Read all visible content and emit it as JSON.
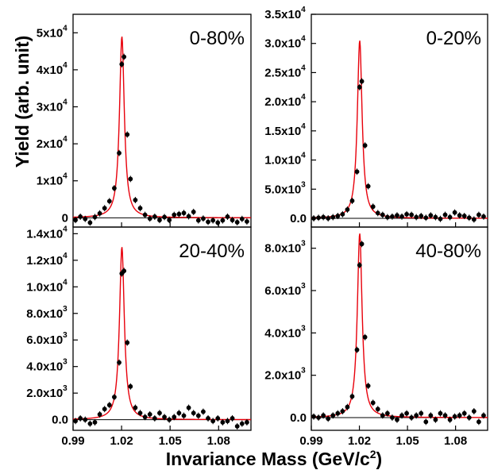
{
  "chart_data": {
    "type": "scatter",
    "xlabel": "Invariance Mass (GeV/c²)",
    "xlabel_parts": {
      "main": "Invariance Mass (GeV/c",
      "sup": "2",
      "end": ")"
    },
    "ylabel": "Yield (arb. unit)",
    "x_ticks": [
      "0.99",
      "1.02",
      "1.05",
      "1.08"
    ],
    "x_tick_values": [
      0.99,
      1.02,
      1.05,
      1.08
    ],
    "xlim": [
      0.99,
      1.1
    ],
    "fit_color": "#e8000b",
    "marker_color": "#000000",
    "panels": [
      {
        "label": "0-80%",
        "ylim": [
          -2500,
          55000
        ],
        "y_ticks": [
          {
            "value": 0,
            "mant": "0",
            "exp": ""
          },
          {
            "value": 10000,
            "mant": "1x10",
            "exp": "4"
          },
          {
            "value": 20000,
            "mant": "2x10",
            "exp": "4"
          },
          {
            "value": 30000,
            "mant": "3x10",
            "exp": "4"
          },
          {
            "value": 40000,
            "mant": "4x10",
            "exp": "4"
          },
          {
            "value": 50000,
            "mant": "5x10",
            "exp": "4"
          }
        ],
        "fit_peak": 49000,
        "points": [
          [
            0.9915,
            -600
          ],
          [
            0.9945,
            300
          ],
          [
            0.9975,
            -300
          ],
          [
            1.0005,
            -1300
          ],
          [
            1.0035,
            200
          ],
          [
            1.0065,
            1200
          ],
          [
            1.0095,
            2600
          ],
          [
            1.0125,
            4500
          ],
          [
            1.0155,
            8000
          ],
          [
            1.0185,
            17500
          ],
          [
            1.0201,
            41500
          ],
          [
            1.0215,
            43500
          ],
          [
            1.0235,
            22500
          ],
          [
            1.0255,
            10500
          ],
          [
            1.0285,
            4800
          ],
          [
            1.0315,
            2600
          ],
          [
            1.0345,
            800
          ],
          [
            1.0375,
            -200
          ],
          [
            1.0405,
            300
          ],
          [
            1.0435,
            -600
          ],
          [
            1.0465,
            200
          ],
          [
            1.0495,
            -600
          ],
          [
            1.0525,
            800
          ],
          [
            1.0555,
            1000
          ],
          [
            1.0585,
            1300
          ],
          [
            1.0615,
            400
          ],
          [
            1.0645,
            1600
          ],
          [
            1.0675,
            -700
          ],
          [
            1.0705,
            -200
          ],
          [
            1.0735,
            -1100
          ],
          [
            1.0765,
            -700
          ],
          [
            1.0795,
            -1300
          ],
          [
            1.0825,
            -700
          ],
          [
            1.0855,
            300
          ],
          [
            1.0885,
            -600
          ],
          [
            1.0915,
            -1200
          ],
          [
            1.0945,
            -300
          ],
          [
            1.0975,
            -1000
          ]
        ]
      },
      {
        "label": "0-20%",
        "ylim": [
          -1500,
          35000
        ],
        "y_ticks": [
          {
            "value": 0,
            "mant": "0.0",
            "exp": ""
          },
          {
            "value": 5000,
            "mant": "5.0x10",
            "exp": "3"
          },
          {
            "value": 10000,
            "mant": "1.0x10",
            "exp": "4"
          },
          {
            "value": 15000,
            "mant": "1.5x10",
            "exp": "4"
          },
          {
            "value": 20000,
            "mant": "2.0x10",
            "exp": "4"
          },
          {
            "value": 25000,
            "mant": "2.5x10",
            "exp": "4"
          },
          {
            "value": 30000,
            "mant": "3.0x10",
            "exp": "4"
          },
          {
            "value": 35000,
            "mant": "3.5x10",
            "exp": "4"
          }
        ],
        "fit_peak": 30500,
        "points": [
          [
            0.9915,
            0
          ],
          [
            0.9945,
            100
          ],
          [
            0.9975,
            200
          ],
          [
            1.0005,
            0
          ],
          [
            1.0035,
            200
          ],
          [
            1.0065,
            400
          ],
          [
            1.0095,
            700
          ],
          [
            1.0125,
            1500
          ],
          [
            1.0155,
            3000
          ],
          [
            1.0185,
            8000
          ],
          [
            1.0201,
            22500
          ],
          [
            1.0215,
            23500
          ],
          [
            1.0235,
            12500
          ],
          [
            1.0255,
            5500
          ],
          [
            1.0285,
            2000
          ],
          [
            1.0315,
            900
          ],
          [
            1.0345,
            600
          ],
          [
            1.0375,
            200
          ],
          [
            1.0405,
            300
          ],
          [
            1.0435,
            500
          ],
          [
            1.0465,
            300
          ],
          [
            1.0495,
            700
          ],
          [
            1.0525,
            600
          ],
          [
            1.0555,
            200
          ],
          [
            1.0585,
            400
          ],
          [
            1.0615,
            100
          ],
          [
            1.0645,
            500
          ],
          [
            1.0675,
            200
          ],
          [
            1.0705,
            -100
          ],
          [
            1.0735,
            600
          ],
          [
            1.0765,
            200
          ],
          [
            1.0795,
            1000
          ],
          [
            1.0825,
            500
          ],
          [
            1.0855,
            400
          ],
          [
            1.0885,
            100
          ],
          [
            1.0915,
            -200
          ],
          [
            1.0945,
            600
          ],
          [
            1.0975,
            300
          ]
        ]
      },
      {
        "label": "20-40%",
        "ylim": [
          -800,
          14500
        ],
        "y_ticks": [
          {
            "value": 0,
            "mant": "0.0",
            "exp": ""
          },
          {
            "value": 2000,
            "mant": "2.0x10",
            "exp": "3"
          },
          {
            "value": 4000,
            "mant": "4.0x10",
            "exp": "3"
          },
          {
            "value": 6000,
            "mant": "6.0x10",
            "exp": "3"
          },
          {
            "value": 8000,
            "mant": "8.0x10",
            "exp": "3"
          },
          {
            "value": 10000,
            "mant": "1.0x10",
            "exp": "4"
          },
          {
            "value": 12000,
            "mant": "1.2x10",
            "exp": "4"
          },
          {
            "value": 14000,
            "mant": "1.4x10",
            "exp": "4"
          }
        ],
        "fit_peak": 13000,
        "points": [
          [
            0.9915,
            -100
          ],
          [
            0.9945,
            100
          ],
          [
            0.9975,
            0
          ],
          [
            1.0005,
            -300
          ],
          [
            1.0035,
            -200
          ],
          [
            1.0065,
            400
          ],
          [
            1.0095,
            800
          ],
          [
            1.0125,
            1100
          ],
          [
            1.0155,
            1700
          ],
          [
            1.0185,
            4300
          ],
          [
            1.0201,
            11000
          ],
          [
            1.0215,
            11200
          ],
          [
            1.0235,
            5800
          ],
          [
            1.0255,
            2500
          ],
          [
            1.0285,
            900
          ],
          [
            1.0315,
            500
          ],
          [
            1.0345,
            200
          ],
          [
            1.0375,
            400
          ],
          [
            1.0405,
            100
          ],
          [
            1.0435,
            500
          ],
          [
            1.0465,
            200
          ],
          [
            1.0495,
            0
          ],
          [
            1.0525,
            200
          ],
          [
            1.0555,
            500
          ],
          [
            1.0585,
            300
          ],
          [
            1.0615,
            900
          ],
          [
            1.0645,
            500
          ],
          [
            1.0675,
            300
          ],
          [
            1.0705,
            600
          ],
          [
            1.0735,
            100
          ],
          [
            1.0765,
            -100
          ],
          [
            1.0795,
            100
          ],
          [
            1.0825,
            -200
          ],
          [
            1.0855,
            -100
          ],
          [
            1.0885,
            100
          ],
          [
            1.0915,
            -500
          ],
          [
            1.0945,
            -300
          ],
          [
            1.0975,
            -200
          ]
        ]
      },
      {
        "label": "40-80%",
        "ylim": [
          -600,
          9000
        ],
        "y_ticks": [
          {
            "value": 0,
            "mant": "0.0",
            "exp": ""
          },
          {
            "value": 2000,
            "mant": "2.0x10",
            "exp": "3"
          },
          {
            "value": 4000,
            "mant": "4.0x10",
            "exp": "3"
          },
          {
            "value": 6000,
            "mant": "6.0x10",
            "exp": "3"
          },
          {
            "value": 8000,
            "mant": "8.0x10",
            "exp": "3"
          }
        ],
        "fit_peak": 8700,
        "points": [
          [
            0.9915,
            50
          ],
          [
            0.9945,
            0
          ],
          [
            0.9975,
            100
          ],
          [
            1.0005,
            -50
          ],
          [
            1.0035,
            100
          ],
          [
            1.0065,
            200
          ],
          [
            1.0095,
            300
          ],
          [
            1.0125,
            500
          ],
          [
            1.0155,
            1000
          ],
          [
            1.0185,
            3200
          ],
          [
            1.0201,
            7200
          ],
          [
            1.0215,
            8200
          ],
          [
            1.0235,
            3800
          ],
          [
            1.0255,
            1500
          ],
          [
            1.0285,
            700
          ],
          [
            1.0315,
            400
          ],
          [
            1.0345,
            100
          ],
          [
            1.0375,
            200
          ],
          [
            1.0405,
            0
          ],
          [
            1.0435,
            -100
          ],
          [
            1.0465,
            100
          ],
          [
            1.0495,
            200
          ],
          [
            1.0525,
            0
          ],
          [
            1.0555,
            100
          ],
          [
            1.0585,
            200
          ],
          [
            1.0615,
            -200
          ],
          [
            1.0645,
            100
          ],
          [
            1.0675,
            -100
          ],
          [
            1.0705,
            200
          ],
          [
            1.0735,
            100
          ],
          [
            1.0765,
            -100
          ],
          [
            1.0795,
            50
          ],
          [
            1.0825,
            100
          ],
          [
            1.0855,
            200
          ],
          [
            1.0885,
            0
          ],
          [
            1.0915,
            300
          ],
          [
            1.0945,
            -200
          ],
          [
            1.0975,
            100
          ]
        ]
      }
    ]
  }
}
